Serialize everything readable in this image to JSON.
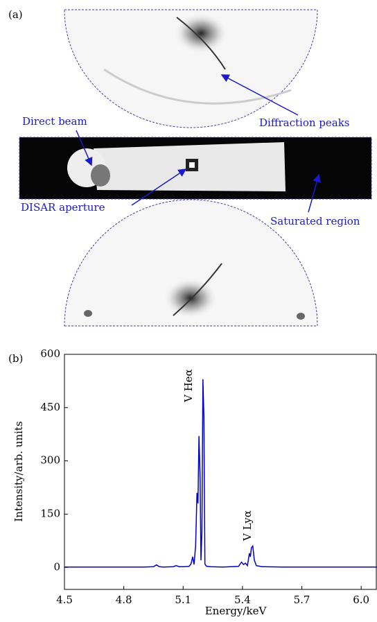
{
  "panel_a": {
    "label": "(a)",
    "annotations": [
      "Direct beam",
      "Diffraction peaks",
      "DISAR aperture",
      "Saturated region"
    ]
  },
  "chart_data": {
    "type": "line",
    "panel_label": "(b)",
    "xlabel": "Energy/keV",
    "ylabel": "Intensity/arb. units",
    "annotations": [
      "V Heα",
      "V Lyα"
    ],
    "x": [
      4.5,
      4.6,
      4.7,
      4.8,
      4.9,
      4.95,
      4.965,
      4.98,
      5.0,
      5.05,
      5.065,
      5.08,
      5.1,
      5.13,
      5.14,
      5.148,
      5.155,
      5.163,
      5.17,
      5.175,
      5.18,
      5.186,
      5.19,
      5.195,
      5.2,
      5.205,
      5.21,
      5.215,
      5.22,
      5.24,
      5.3,
      5.38,
      5.395,
      5.405,
      5.415,
      5.425,
      5.435,
      5.44,
      5.445,
      5.452,
      5.46,
      5.47,
      5.5,
      5.6,
      5.7,
      5.8,
      5.9,
      6.0,
      6.08
    ],
    "series": [
      {
        "color": "#0000cc",
        "values": [
          1,
          1,
          1,
          1,
          1,
          2,
          7,
          2,
          1,
          2,
          5,
          2,
          2,
          3,
          10,
          30,
          8,
          60,
          210,
          180,
          370,
          250,
          20,
          100,
          530,
          420,
          10,
          5,
          3,
          2,
          1,
          3,
          15,
          8,
          12,
          5,
          40,
          30,
          55,
          60,
          20,
          5,
          2,
          1,
          1,
          1,
          1,
          1,
          1
        ]
      }
    ],
    "xlim": [
      4.5,
      6.08
    ],
    "ylim": [
      -62,
      600
    ],
    "xticks": [
      4.5,
      4.8,
      5.1,
      5.4,
      5.7,
      {
        "value": 6,
        "label": "6.0"
      }
    ],
    "yticks": [
      0,
      150,
      300,
      450,
      600
    ]
  }
}
